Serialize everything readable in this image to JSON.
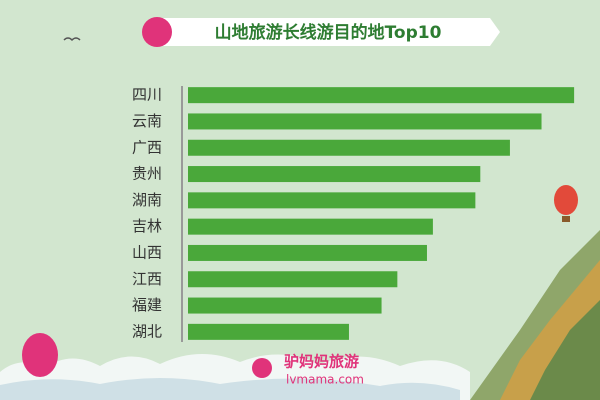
{
  "chart_data": {
    "type": "hbar",
    "title": "山地旅游长线游目的地Top10",
    "categories": [
      "四川",
      "云南",
      "广西",
      "贵州",
      "湖南",
      "吉林",
      "山西",
      "江西",
      "福建",
      "湖北"
    ],
    "values": [
      391,
      358,
      326,
      296,
      291,
      248,
      242,
      212,
      196,
      163
    ],
    "color": "#4aa83a",
    "xlim": [
      0,
      400
    ]
  },
  "brand": {
    "name": "驴妈妈旅游",
    "site": "lvmama.com"
  }
}
